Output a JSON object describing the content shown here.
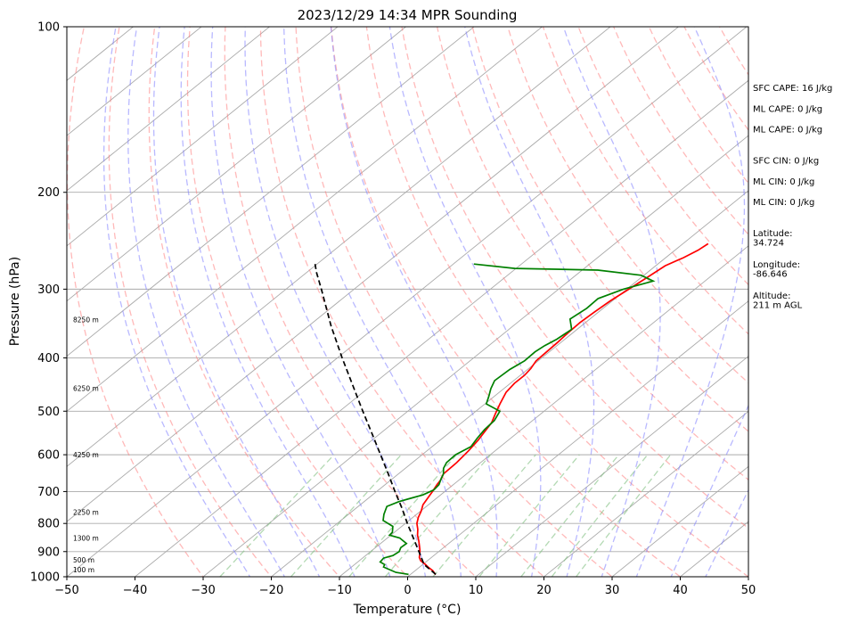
{
  "chart_data": {
    "type": "line",
    "subtype": "skew-t log-p sounding",
    "title": "2023/12/29 14:34 MPR Sounding",
    "xlabel": "Temperature (°C)",
    "ylabel": "Pressure (hPa)",
    "xlim": [
      -50,
      50
    ],
    "ylim": [
      1000,
      100
    ],
    "y_scale": "log",
    "x_ticks": [
      -50,
      -40,
      -30,
      -20,
      -10,
      0,
      10,
      20,
      30,
      40,
      50
    ],
    "y_ticks": [
      1000,
      900,
      800,
      700,
      600,
      500,
      400,
      300,
      200,
      100
    ],
    "grid": true,
    "series": [
      {
        "name": "",
        "color": "#ff0000",
        "pressure": [
          991,
          975,
          962,
          950,
          935,
          922,
          910,
          895,
          880,
          860,
          840,
          820,
          800,
          780,
          760,
          740,
          720,
          700,
          680,
          667,
          650,
          620,
          590,
          565,
          545,
          525,
          505,
          485,
          462,
          445,
          430,
          418,
          405,
          390,
          375,
          360,
          345,
          330,
          315,
          300,
          285,
          272,
          263,
          255,
          248
        ],
        "temperature": [
          3.7,
          2.6,
          1.4,
          0.4,
          -1.0,
          -1.8,
          -2.3,
          -3.0,
          -3.8,
          -4.9,
          -6.1,
          -7.1,
          -8.3,
          -9.2,
          -9.9,
          -10.8,
          -11.3,
          -11.8,
          -12.4,
          -12.7,
          -13.4,
          -13.5,
          -13.9,
          -14.4,
          -15.0,
          -15.6,
          -16.7,
          -17.8,
          -19.0,
          -19.4,
          -19.4,
          -19.7,
          -20.3,
          -20.4,
          -20.5,
          -20.7,
          -20.8,
          -20.6,
          -20.3,
          -19.7,
          -19.1,
          -18.6,
          -17.4,
          -16.6,
          -16.3
        ]
      },
      {
        "name": "",
        "color": "#008000",
        "pressure": [
          990,
          982,
          960,
          950,
          940,
          925,
          915,
          900,
          885,
          870,
          850,
          840,
          830,
          810,
          790,
          770,
          745,
          730,
          720,
          710,
          695,
          680,
          665,
          650,
          635,
          620,
          600,
          580,
          560,
          540,
          520,
          500,
          485,
          470,
          455,
          440,
          420,
          405,
          390,
          380,
          370,
          355,
          340,
          325,
          312,
          300,
          290,
          283,
          277,
          275,
          270
        ],
        "temperature": [
          -0.3,
          -2.5,
          -5.3,
          -5.6,
          -6.7,
          -6.9,
          -6.0,
          -5.8,
          -6.3,
          -6.2,
          -8.2,
          -10.2,
          -10.3,
          -11.3,
          -13.8,
          -14.8,
          -15.8,
          -14.9,
          -13.8,
          -12.6,
          -11.9,
          -12.1,
          -12.8,
          -13.4,
          -14.4,
          -15.0,
          -15.1,
          -14.3,
          -14.9,
          -15.4,
          -15.6,
          -16.5,
          -19.8,
          -20.8,
          -21.9,
          -22.8,
          -22.6,
          -22.0,
          -22.1,
          -21.8,
          -21.2,
          -20.8,
          -22.9,
          -22.4,
          -22.5,
          -20.5,
          -17.6,
          -20.4,
          -27.7,
          -40.2,
          -47.0
        ]
      },
      {
        "name": "",
        "color": "#000000",
        "dashed": true,
        "pressure": [
          990,
          950,
          900,
          850,
          800,
          750,
          700,
          650,
          600,
          550,
          500,
          450,
          400,
          350,
          300,
          280,
          270
        ],
        "temperature": [
          3.7,
          0.2,
          -2.9,
          -6.2,
          -9.7,
          -13.3,
          -17.3,
          -21.5,
          -26.1,
          -31.1,
          -36.6,
          -42.6,
          -49.3,
          -56.7,
          -64.8,
          -68.5,
          -70.3
        ]
      }
    ],
    "height_labels": [
      {
        "text": "100 m",
        "pressure": 988
      },
      {
        "text": "500 m",
        "pressure": 949
      },
      {
        "text": "1300 m",
        "pressure": 866
      },
      {
        "text": "2250 m",
        "pressure": 778
      },
      {
        "text": "4250 m",
        "pressure": 611
      },
      {
        "text": "6250 m",
        "pressure": 463
      },
      {
        "text": "8250 m",
        "pressure": 347
      }
    ],
    "annotations": [
      {
        "text": "SFC CAPE: 16 J/kg",
        "line": 0
      },
      {
        "text": "ML CAPE: 0 J/kg",
        "line": 1
      },
      {
        "text": "ML CAPE: 0 J/kg",
        "line": 2
      },
      {
        "text": "SFC CIN: 0 J/kg",
        "line": 3.5
      },
      {
        "text": "ML CIN: 0 J/kg",
        "line": 4.5
      },
      {
        "text": "ML CIN: 0 J/kg",
        "line": 5.5
      },
      {
        "text": "Latitude:",
        "line": 7
      },
      {
        "text": "34.724",
        "line": 7.45
      },
      {
        "text": "Longitude:",
        "line": 8.5
      },
      {
        "text": "-86.646",
        "line": 8.95
      },
      {
        "text": "Altitude:",
        "line": 10
      },
      {
        "text": "211 m AGL",
        "line": 10.45
      }
    ],
    "background_colors": {
      "isotherm": "#aaaaaa",
      "isobar": "#aaaaaa",
      "dry_adiabat": "#ff8080",
      "moist_adiabat": "#8080ff",
      "mixing_ratio": "#80c080"
    }
  }
}
